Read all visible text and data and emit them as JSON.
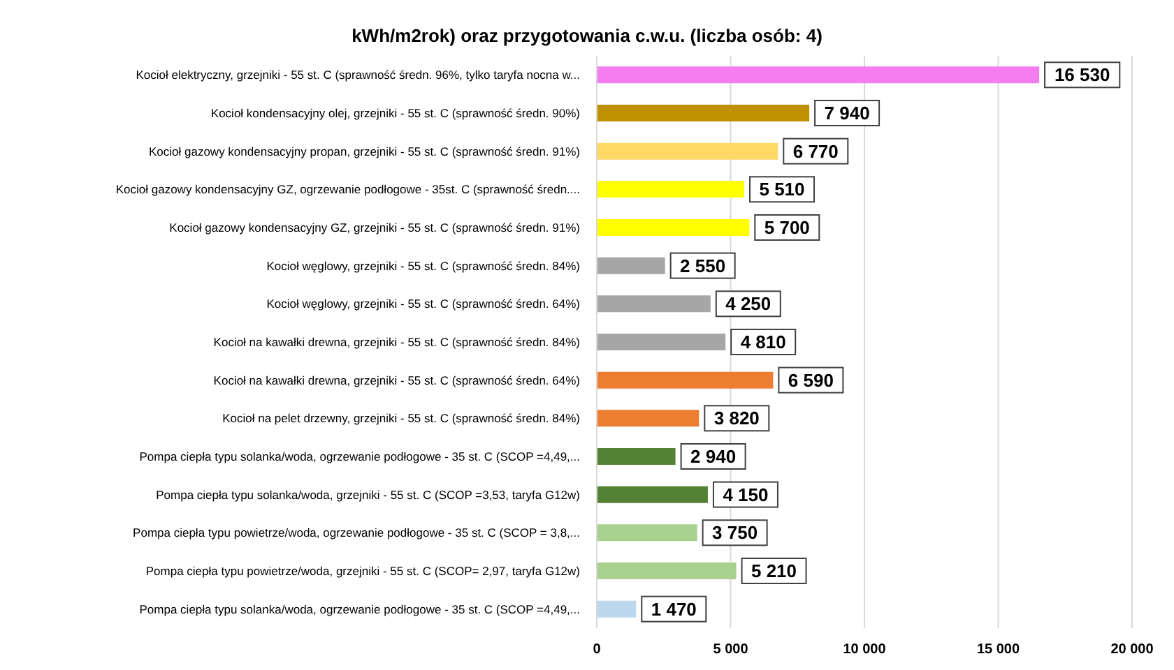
{
  "chart_data": {
    "type": "bar",
    "orientation": "horizontal",
    "title": "kWh/m2rok) oraz przygotowania  c.w.u. (liczba osób: 4)",
    "categories": [
      "Kocioł  elektryczny,  grzejniki - 55 st. C  (sprawność średn. 96%, tylko taryfa nocna w...",
      "Kocioł  kondensacyjny olej,  grzejniki - 55 st. C  (sprawność średn. 90%)",
      "Kocioł gazowy kondensacyjny propan, grzejniki - 55 st. C  (sprawność średn. 91%)",
      "Kocioł gazowy kondensacyjny GZ, ogrzewanie podłogowe - 35st. C   (sprawność średn....",
      "Kocioł gazowy kondensacyjny GZ, grzejniki - 55 st. C   (sprawność średn. 91%)",
      "Kocioł węglowy,  grzejniki - 55 st. C   (sprawność średn. 84%)",
      "Kocioł węglowy,  grzejniki - 55 st. C  (sprawność średn. 64%)",
      "Kocioł na kawałki drewna, grzejniki - 55 st. C (sprawność średn. 84%)",
      "Kocioł na kawałki drewna, grzejniki - 55 st. C  (sprawność średn. 64%)",
      "Kocioł na pelet drzewny, grzejniki - 55 st. C (sprawność średn. 84%)",
      "Pompa ciepła typu solanka/woda, ogrzewanie podłogowe - 35 st. C  (SCOP =4,49,...",
      "Pompa ciepła typu solanka/woda, grzejniki - 55 st. C (SCOP =3,53, taryfa G12w)",
      "Pompa ciepła typu powietrze/woda, ogrzewanie podłogowe - 35 st. C (SCOP = 3,8,...",
      "Pompa ciepła typu powietrze/woda, grzejniki - 55 st. C (SCOP= 2,97, taryfa G12w)",
      "Pompa ciepła typu solanka/woda, ogrzewanie podłogowe - 35 st. C  (SCOP =4,49,..."
    ],
    "values": [
      16530,
      7940,
      6770,
      5510,
      5700,
      2550,
      4250,
      4810,
      6590,
      3820,
      2940,
      4150,
      3750,
      5210,
      1470
    ],
    "value_labels": [
      "16 530",
      "7 940",
      "6 770",
      "5 510",
      "5 700",
      "2 550",
      "4 250",
      "4 810",
      "6 590",
      "3 820",
      "2 940",
      "4 150",
      "3 750",
      "5 210",
      "1 470"
    ],
    "colors": [
      "#f47ef0",
      "#bf9000",
      "#ffd966",
      "#ffff00",
      "#ffff00",
      "#a6a6a6",
      "#a6a6a6",
      "#a6a6a6",
      "#ed7d31",
      "#ed7d31",
      "#548235",
      "#548235",
      "#a9d18e",
      "#a9d18e",
      "#bdd7ee"
    ],
    "xlim": [
      0,
      20000
    ],
    "xticks": [
      0,
      {
        "value": 5000,
        "label": "5 000"
      },
      {
        "value": 10000,
        "label": "10 000"
      },
      {
        "value": 15000,
        "label": "15 000"
      },
      {
        "value": 20000,
        "label": "20 000"
      }
    ],
    "grid": "x"
  }
}
